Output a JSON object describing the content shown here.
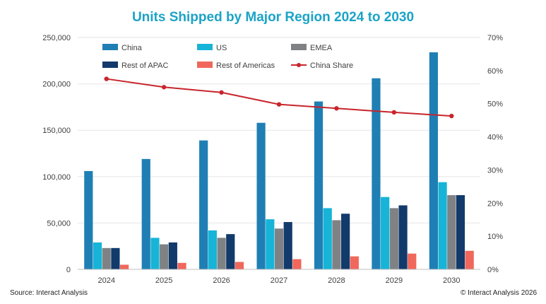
{
  "chart_data": {
    "type": "bar",
    "title": "Units Shipped by Major Region 2024 to 2030",
    "categories": [
      "2024",
      "2025",
      "2026",
      "2027",
      "2028",
      "2029",
      "2030"
    ],
    "y_left": {
      "min": 0,
      "max": 250000,
      "ticks": [
        "0",
        "50,000",
        "100,000",
        "150,000",
        "200,000",
        "250,000"
      ]
    },
    "y_right": {
      "min": 0,
      "max": 70,
      "unit": "%",
      "ticks": [
        "0%",
        "10%",
        "20%",
        "30%",
        "40%",
        "50%",
        "60%",
        "70%"
      ]
    },
    "series": [
      {
        "name": "China",
        "kind": "bar",
        "color": "#1f7fb4",
        "values": [
          106000,
          119000,
          139000,
          158000,
          181000,
          206000,
          234000
        ]
      },
      {
        "name": "US",
        "kind": "bar",
        "color": "#17b4d8",
        "values": [
          29000,
          34000,
          42000,
          54000,
          66000,
          78000,
          94000
        ]
      },
      {
        "name": "EMEA",
        "kind": "bar",
        "color": "#7f8285",
        "values": [
          23000,
          27000,
          34000,
          44000,
          53000,
          66000,
          80000
        ]
      },
      {
        "name": "Rest of APAC",
        "kind": "bar",
        "color": "#123a6b",
        "values": [
          23000,
          29000,
          38000,
          51000,
          60000,
          69000,
          80000
        ]
      },
      {
        "name": "Rest of Americas",
        "kind": "bar",
        "color": "#f0675c",
        "values": [
          5000,
          7000,
          8000,
          11000,
          14000,
          17000,
          20000
        ]
      },
      {
        "name": "China Share",
        "kind": "line",
        "axis": "right",
        "color": "#c8252c",
        "values": [
          57.5,
          55.0,
          53.4,
          49.8,
          48.6,
          47.4,
          46.3
        ]
      }
    ],
    "legend": [
      "China",
      "US",
      "EMEA",
      "Rest of APAC",
      "Rest of Americas",
      "China Share"
    ],
    "legend_position": "top",
    "grid": true
  },
  "footer": {
    "source": "Source: Interact Analysis",
    "copyright": "© Interact Analysis 2026"
  }
}
